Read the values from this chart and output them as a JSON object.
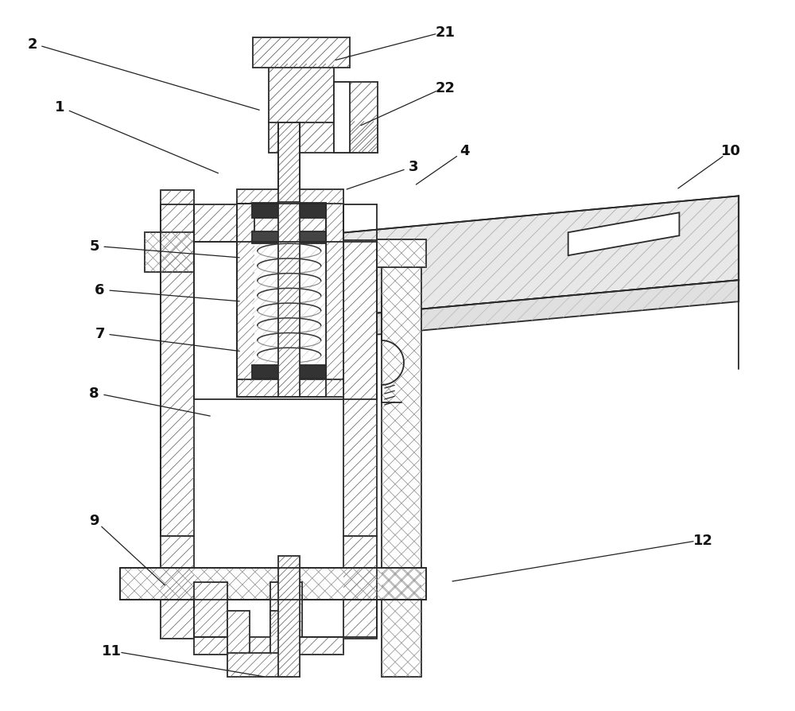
{
  "figure_width": 10.0,
  "figure_height": 8.95,
  "dpi": 100,
  "bg_color": "#ffffff",
  "lc": "#2a2a2a",
  "lw": 1.3,
  "labels": {
    "2": [
      0.4,
      8.4,
      3.3,
      7.55
    ],
    "1": [
      0.75,
      7.6,
      2.78,
      6.75
    ],
    "21": [
      5.6,
      8.55,
      4.18,
      8.18
    ],
    "22": [
      5.6,
      7.85,
      4.5,
      7.35
    ],
    "3": [
      5.2,
      6.85,
      4.32,
      6.55
    ],
    "4": [
      5.85,
      7.05,
      5.2,
      6.6
    ],
    "10": [
      9.2,
      7.05,
      8.5,
      6.55
    ],
    "5": [
      1.18,
      5.85,
      3.05,
      5.7
    ],
    "6": [
      1.25,
      5.3,
      3.05,
      5.15
    ],
    "7": [
      1.25,
      4.75,
      3.05,
      4.52
    ],
    "8": [
      1.18,
      4.0,
      2.68,
      3.7
    ],
    "9": [
      1.18,
      2.4,
      2.1,
      1.55
    ],
    "11": [
      1.4,
      0.75,
      3.35,
      0.42
    ],
    "12": [
      8.85,
      2.15,
      5.65,
      1.62
    ]
  }
}
